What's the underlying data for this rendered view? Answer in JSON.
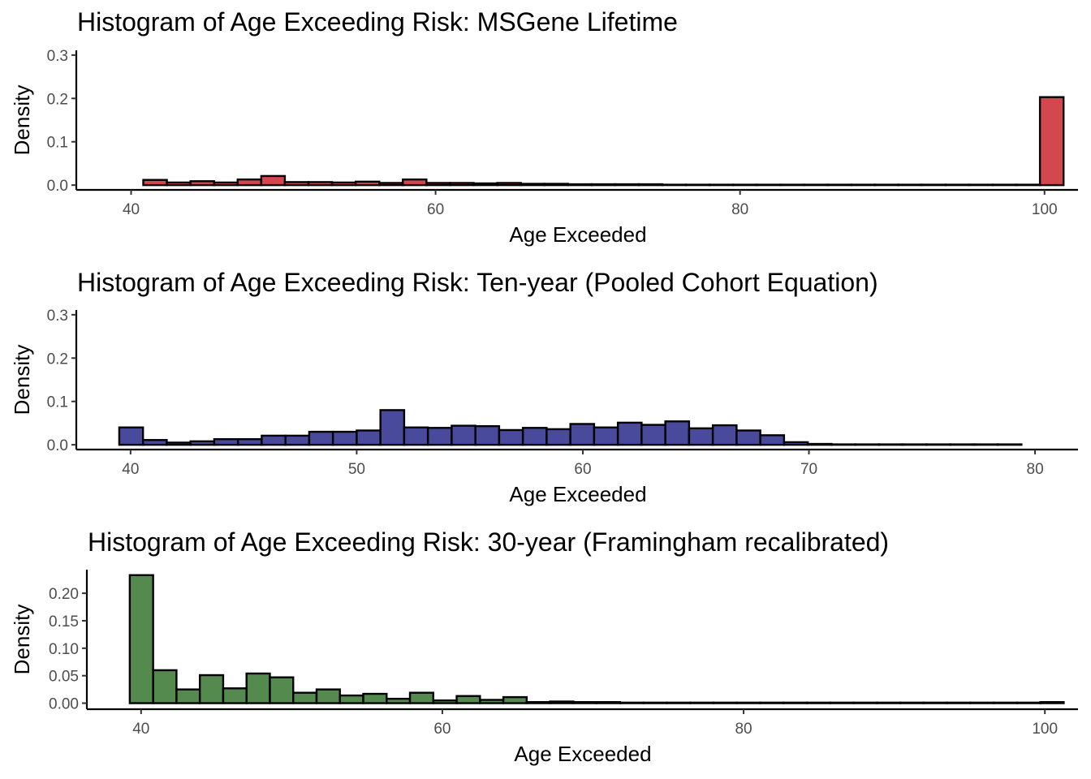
{
  "chart_data": [
    {
      "type": "bar",
      "title": "Histogram of Age Exceeding Risk: MSGene Lifetime",
      "xlabel": "Age Exceeded",
      "ylabel": "Density",
      "xlim": [
        36.4,
        102.2
      ],
      "ylim": [
        -0.011,
        0.311
      ],
      "x_ticks": [
        40,
        60,
        80,
        100
      ],
      "x_tick_labels": [
        "40",
        "60",
        "80",
        "100"
      ],
      "y_ticks": [
        0.0,
        0.1,
        0.2,
        0.3
      ],
      "y_tick_labels": [
        "0.0",
        "0.1",
        "0.2",
        "0.3"
      ],
      "bin_width": 1.55,
      "bins_start": 40.8,
      "values": [
        0.012,
        0.006,
        0.009,
        0.006,
        0.013,
        0.021,
        0.007,
        0.007,
        0.006,
        0.008,
        0.005,
        0.013,
        0.005,
        0.005,
        0.004,
        0.005,
        0.003,
        0.003,
        0.002,
        0.002,
        0.002,
        0.002,
        0.001,
        0.001,
        0.001,
        0.001,
        0.001,
        0.001,
        0.001,
        0.001,
        0.001,
        0.001,
        0.001,
        0.001,
        0.001,
        0.001,
        0.001,
        0.001,
        0.203
      ],
      "fill": "#D3484F",
      "grid": false,
      "legend": "none"
    },
    {
      "type": "bar",
      "title": "Histogram of Age Exceeding Risk: Ten-year (Pooled Cohort Equation)",
      "xlabel": "Age Exceeded",
      "ylabel": "Density",
      "xlim": [
        37.6,
        81.9
      ],
      "ylim": [
        -0.011,
        0.311
      ],
      "x_ticks": [
        40,
        50,
        60,
        70,
        80
      ],
      "x_tick_labels": [
        "40",
        "50",
        "60",
        "70",
        "80"
      ],
      "y_ticks": [
        0.0,
        0.1,
        0.2,
        0.3
      ],
      "y_tick_labels": [
        "0.0",
        "0.1",
        "0.2",
        "0.3"
      ],
      "bin_width": 1.05,
      "bins_start": 39.5,
      "values": [
        0.04,
        0.011,
        0.005,
        0.008,
        0.013,
        0.013,
        0.021,
        0.021,
        0.03,
        0.03,
        0.033,
        0.08,
        0.04,
        0.039,
        0.044,
        0.043,
        0.034,
        0.039,
        0.036,
        0.048,
        0.04,
        0.051,
        0.046,
        0.054,
        0.038,
        0.045,
        0.033,
        0.022,
        0.006,
        0.002,
        0.001,
        0.001,
        0.001,
        0.001,
        0.001,
        0.001,
        0.001,
        0.001
      ],
      "fill": "#4A4A9C",
      "grid": false,
      "legend": "none"
    },
    {
      "type": "bar",
      "title": "Histogram of Age Exceeding Risk: 30-year (Framingham recalibrated)",
      "xlabel": "Age Exceeded",
      "ylabel": "Density",
      "xlim": [
        36.4,
        102.2
      ],
      "ylim": [
        -0.011,
        0.243
      ],
      "x_ticks": [
        40,
        60,
        80,
        100
      ],
      "x_tick_labels": [
        "40",
        "60",
        "80",
        "100"
      ],
      "y_ticks": [
        0.0,
        0.05,
        0.1,
        0.15,
        0.2
      ],
      "y_tick_labels": [
        "0.00",
        "0.05",
        "0.10",
        "0.15",
        "0.20"
      ],
      "bin_width": 1.55,
      "bins_start": 39.25,
      "values": [
        0.233,
        0.06,
        0.025,
        0.051,
        0.027,
        0.054,
        0.047,
        0.019,
        0.025,
        0.014,
        0.017,
        0.008,
        0.019,
        0.005,
        0.013,
        0.006,
        0.011,
        0.002,
        0.003,
        0.002,
        0.002,
        0.001,
        0.001,
        0.001,
        0.001,
        0.001,
        0.001,
        0.001,
        0.001,
        0.001,
        0.001,
        0.001,
        0.001,
        0.001,
        0.001,
        0.001,
        0.001,
        0.001,
        0.001,
        0.002
      ],
      "fill": "#548A4E",
      "grid": false,
      "legend": "none"
    }
  ]
}
